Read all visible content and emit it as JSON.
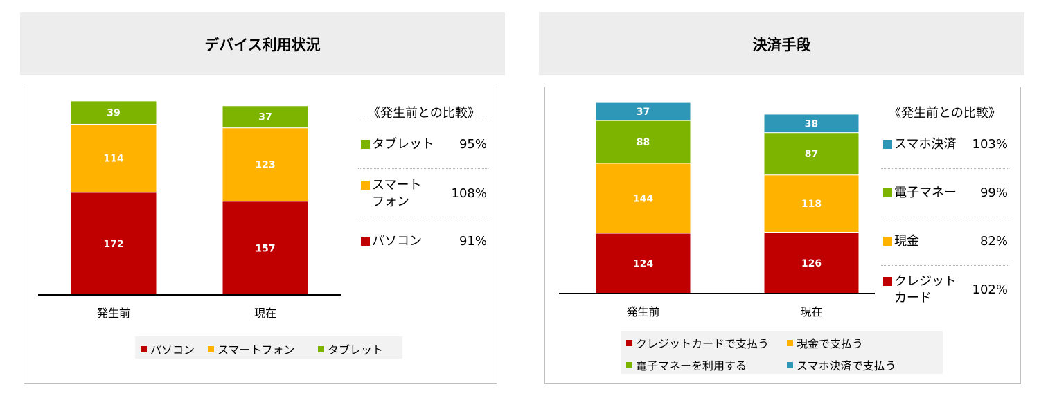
{
  "colors": {
    "pc": "#c00000",
    "smartphone": "#ffb300",
    "tablet": "#7cb400",
    "card": "#c00000",
    "cash": "#ffb300",
    "emoney": "#7cb400",
    "mobile": "#2e96b6"
  },
  "left": {
    "title": "デバイス利用状況",
    "compare_title": "《発生前との比較》",
    "compare": [
      {
        "label": "タブレット",
        "pct": "95%"
      },
      {
        "label": "スマート\nフォン",
        "pct": "108%"
      },
      {
        "label": "パソコン",
        "pct": "91%"
      }
    ],
    "legend": [
      "パソコン",
      "スマートフォン",
      "タブレット"
    ]
  },
  "right": {
    "title": "決済手段",
    "compare_title": "《発生前との比較》",
    "compare": [
      {
        "label": "スマホ決済",
        "pct": "103%"
      },
      {
        "label": "電子マネー",
        "pct": "99%"
      },
      {
        "label": "現金",
        "pct": "82%"
      },
      {
        "label": "クレジット\nカード",
        "pct": "102%"
      }
    ],
    "legend": [
      "クレジットカードで支払う",
      "現金で支払う",
      "電子マネーを利用する",
      "スマホ決済で支払う"
    ]
  },
  "chart_data": [
    {
      "type": "bar",
      "stacked": true,
      "title": "デバイス利用状況",
      "categories": [
        "発生前",
        "現在"
      ],
      "series": [
        {
          "name": "パソコン",
          "values": [
            172,
            157
          ]
        },
        {
          "name": "スマートフォン",
          "values": [
            114,
            123
          ]
        },
        {
          "name": "タブレット",
          "values": [
            39,
            37
          ]
        }
      ],
      "legend_position": "bottom"
    },
    {
      "type": "bar",
      "stacked": true,
      "title": "決済手段",
      "categories": [
        "発生前",
        "現在"
      ],
      "series": [
        {
          "name": "クレジットカードで支払う",
          "values": [
            124,
            126
          ]
        },
        {
          "name": "現金で支払う",
          "values": [
            144,
            118
          ]
        },
        {
          "name": "電子マネーを利用する",
          "values": [
            88,
            87
          ]
        },
        {
          "name": "スマホ決済で支払う",
          "values": [
            37,
            38
          ]
        }
      ],
      "legend_position": "bottom"
    }
  ]
}
